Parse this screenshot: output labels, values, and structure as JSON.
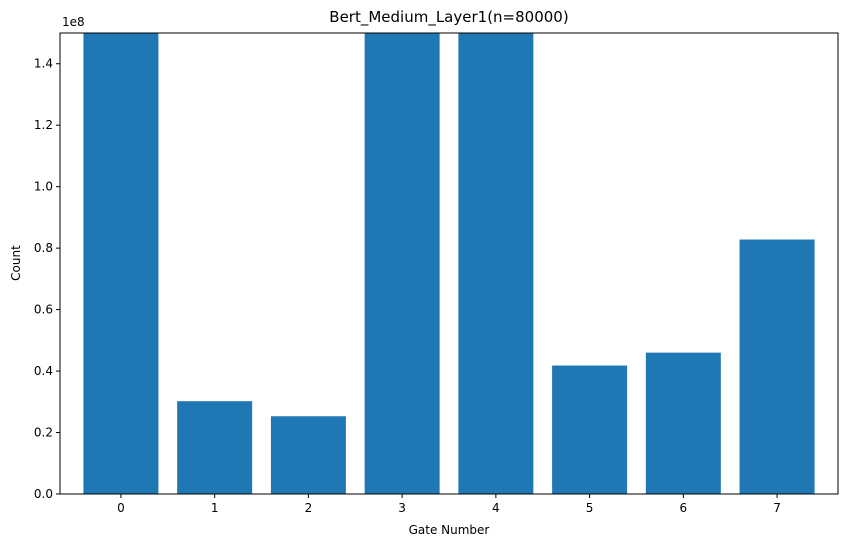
{
  "chart_data": {
    "type": "bar",
    "title": "Bert_Medium_Layer1(n=80000)",
    "xlabel": "Gate Number",
    "ylabel": "Count",
    "y_scale_note": "1e8",
    "categories": [
      "0",
      "1",
      "2",
      "3",
      "4",
      "5",
      "6",
      "7"
    ],
    "values": [
      150000000,
      30200000,
      25300000,
      150000000,
      150000000,
      41800000,
      46000000,
      82800000
    ],
    "ylim": [
      0,
      150000000
    ],
    "yticks": [
      0,
      20000000,
      40000000,
      60000000,
      80000000,
      100000000,
      120000000,
      140000000
    ],
    "ytick_labels": [
      "0.0",
      "0.2",
      "0.4",
      "0.6",
      "0.8",
      "1.0",
      "1.2",
      "1.4"
    ],
    "grid": false,
    "bar_color": "#1f77b4"
  }
}
